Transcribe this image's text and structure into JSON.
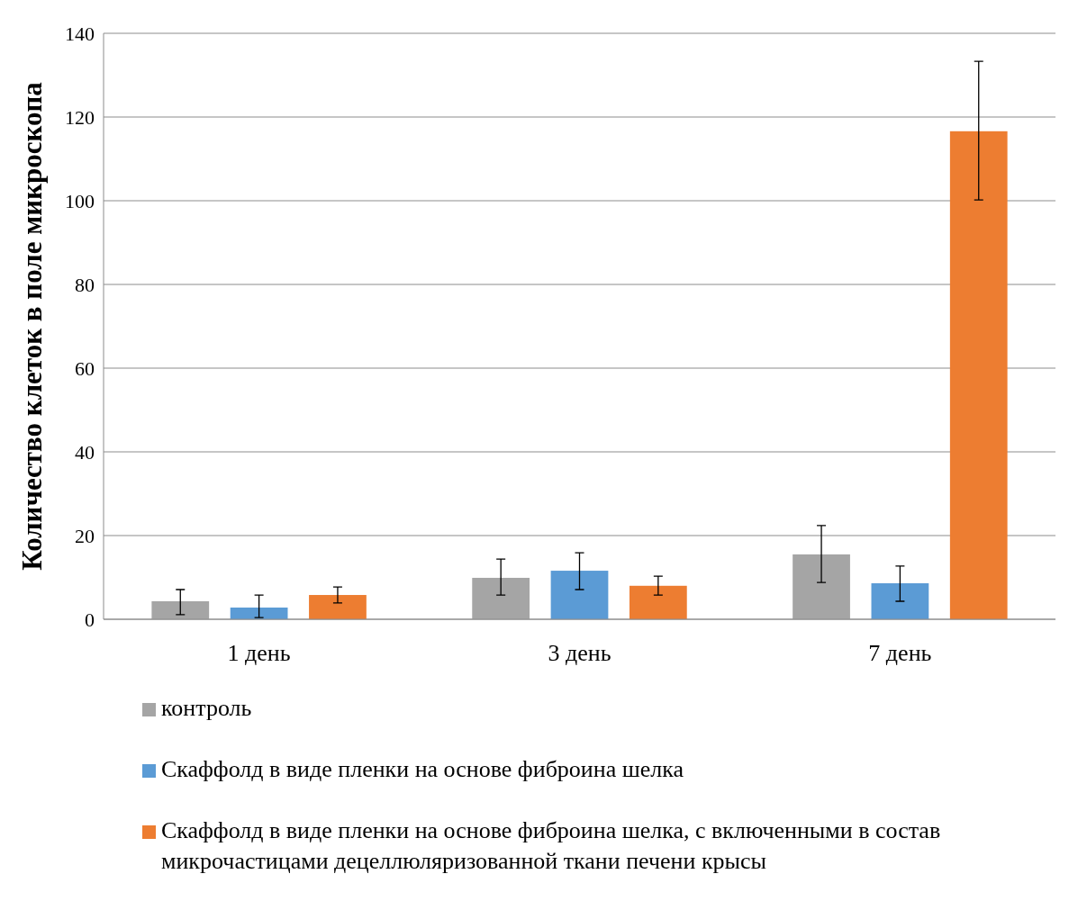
{
  "chart_data": {
    "type": "bar",
    "ylabel": "Количество клеток в поле микроскопа",
    "categories": [
      "1 день",
      "3 день",
      "7 день"
    ],
    "series": [
      {
        "name": "контроль",
        "color": "#a5a5a5",
        "values": [
          4.3,
          9.9,
          15.5
        ],
        "errors": [
          [
            1.1,
            7.1
          ],
          [
            5.8,
            14.4
          ],
          [
            8.8,
            22.4
          ]
        ]
      },
      {
        "name": "Скаффолд в виде пленки на основе фиброина шелка",
        "color": "#5b9bd5",
        "values": [
          2.8,
          11.6,
          8.6
        ],
        "errors": [
          [
            0.4,
            5.8
          ],
          [
            7.1,
            15.9
          ],
          [
            4.3,
            12.7
          ]
        ]
      },
      {
        "name": "Скаффолд в виде пленки на основе фиброина шелка, с включенными в состав микрочастицами децеллюляризованной ткани печени крысы",
        "color": "#ed7d31",
        "values": [
          5.8,
          8.0,
          116.6
        ],
        "errors": [
          [
            3.9,
            7.7
          ],
          [
            5.8,
            10.3
          ],
          [
            100.2,
            133.3
          ]
        ]
      }
    ],
    "ylim": [
      0,
      140
    ],
    "yticks": [
      0,
      20,
      40,
      60,
      80,
      100,
      120,
      140
    ],
    "grid": "y",
    "legend": "bottom"
  }
}
